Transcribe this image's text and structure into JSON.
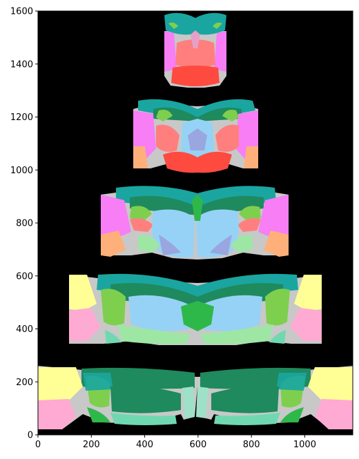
{
  "figure": {
    "background": "#ffffff",
    "plot_background": "#000000"
  },
  "axes": {
    "x": {
      "range": [
        0,
        1180
      ],
      "tick_labels": [
        "0",
        "200",
        "400",
        "600",
        "800",
        "1000"
      ],
      "tick_values": [
        0,
        200,
        400,
        600,
        800,
        1000
      ]
    },
    "y": {
      "range": [
        0,
        1600
      ],
      "tick_labels": [
        "0",
        "200",
        "400",
        "600",
        "800",
        "1000",
        "1200",
        "1400",
        "1600"
      ],
      "tick_values": [
        0,
        200,
        400,
        600,
        800,
        1000,
        1200,
        1400,
        1600
      ]
    }
  },
  "image_content": {
    "description_name": "brain-atlas-coronal-sections-montage",
    "section_count": 5,
    "palette": {
      "teal": "#1aa5a0",
      "dark_green": "#1e8a5e",
      "green": "#2eb84a",
      "light_green": "#7fcf4f",
      "pale_green": "#9ee6a4",
      "sky_blue": "#96d2f5",
      "lavender": "#9aa6e0",
      "magenta": "#f77ef5",
      "salmon": "#ff7f7f",
      "red": "#ff4a40",
      "peach": "#ffb07a",
      "yellow": "#ffff96",
      "pink": "#ffaad2",
      "gray": "#c8c8c8",
      "mint": "#9fe0c8"
    }
  }
}
